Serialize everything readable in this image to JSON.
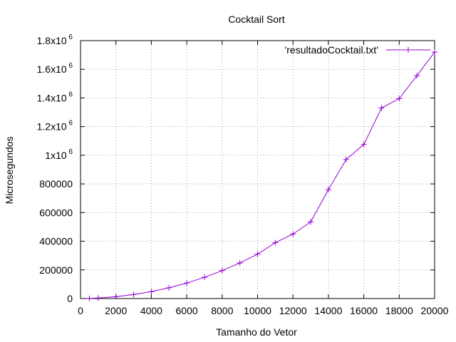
{
  "chart_data": {
    "type": "line",
    "title": "Cocktail Sort",
    "xlabel": "Tamanho do Vetor",
    "ylabel": "Microsegundos",
    "xlim": [
      0,
      20000
    ],
    "ylim": [
      0,
      1800000
    ],
    "grid": true,
    "legend_position": "top-right",
    "x_ticks": [
      {
        "value": 0,
        "label": "0"
      },
      {
        "value": 2000,
        "label": "2000"
      },
      {
        "value": 4000,
        "label": "4000"
      },
      {
        "value": 6000,
        "label": "6000"
      },
      {
        "value": 8000,
        "label": "8000"
      },
      {
        "value": 10000,
        "label": "10000"
      },
      {
        "value": 12000,
        "label": "12000"
      },
      {
        "value": 14000,
        "label": "14000"
      },
      {
        "value": 16000,
        "label": "16000"
      },
      {
        "value": 18000,
        "label": "18000"
      },
      {
        "value": 20000,
        "label": "20000"
      }
    ],
    "y_ticks": [
      {
        "value": 0,
        "label": "0"
      },
      {
        "value": 200000,
        "label": "200000"
      },
      {
        "value": 400000,
        "label": "400000"
      },
      {
        "value": 600000,
        "label": "600000"
      },
      {
        "value": 800000,
        "label": "800000"
      },
      {
        "value": 1000000,
        "label": "1x10",
        "exp": "6"
      },
      {
        "value": 1200000,
        "label": "1.2x10",
        "exp": "6"
      },
      {
        "value": 1400000,
        "label": "1.4x10",
        "exp": "6"
      },
      {
        "value": 1600000,
        "label": "1.6x10",
        "exp": "6"
      },
      {
        "value": 1800000,
        "label": "1.8x10",
        "exp": "6"
      }
    ],
    "series": [
      {
        "name": "'resultadoCocktail.txt'",
        "color": "#9400d3",
        "marker": "plus",
        "x": [
          500,
          1000,
          2000,
          3000,
          4000,
          5000,
          6000,
          7000,
          8000,
          9000,
          10000,
          11000,
          12000,
          13000,
          14000,
          15000,
          16000,
          17000,
          18000,
          19000,
          20000
        ],
        "y": [
          800,
          4000,
          13000,
          28000,
          48000,
          75000,
          108000,
          148000,
          195000,
          248000,
          310000,
          390000,
          450000,
          535000,
          760000,
          970000,
          1075000,
          1330000,
          1395000,
          1555000,
          1720000
        ]
      }
    ]
  }
}
